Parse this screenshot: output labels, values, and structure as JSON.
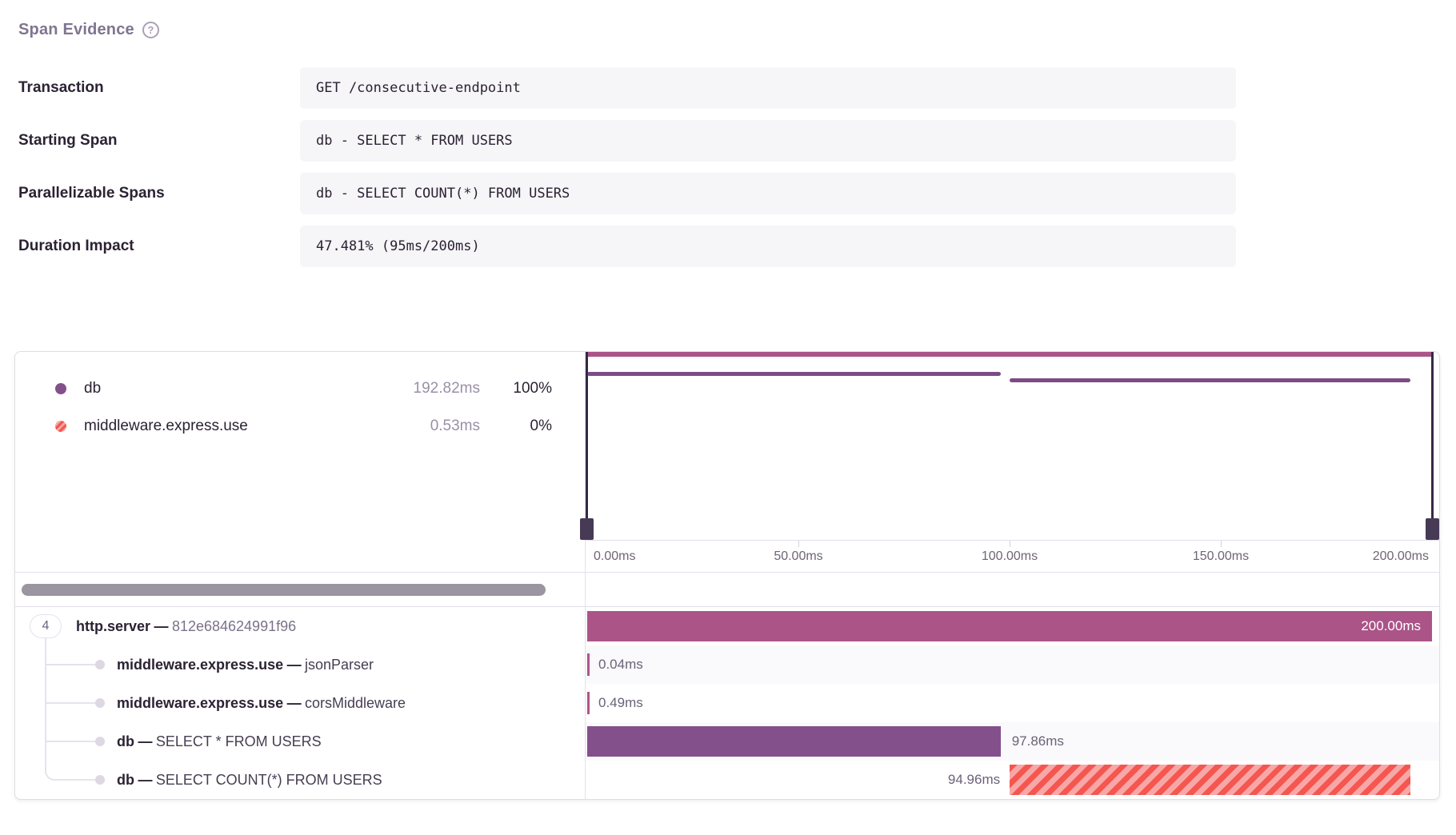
{
  "page": {
    "title": "Span Evidence",
    "help_glyph": "?"
  },
  "evidence": {
    "rows": [
      {
        "label": "Transaction",
        "value": "GET /consecutive-endpoint"
      },
      {
        "label": "Starting Span",
        "value": "db - SELECT * FROM USERS"
      },
      {
        "label": "Parallelizable Spans",
        "value": "db - SELECT COUNT(*) FROM USERS"
      },
      {
        "label": "Duration Impact",
        "value": "47.481% (95ms/200ms)"
      }
    ]
  },
  "chart_data": {
    "type": "bar",
    "variant": "span-waterfall",
    "x_unit": "ms",
    "x_range": [
      0,
      200
    ],
    "axis_ticks": [
      "0.00ms",
      "50.00ms",
      "100.00ms",
      "150.00ms",
      "200.00ms"
    ],
    "grid": false,
    "legend_position": "left",
    "legend": [
      {
        "name": "db",
        "duration": "192.82ms",
        "percent": "100%",
        "swatch": "solid-purple"
      },
      {
        "name": "middleware.express.use",
        "duration": "0.53ms",
        "percent": "0%",
        "swatch": "striped-red"
      }
    ],
    "separator": "—",
    "spans": [
      {
        "op": "http.server",
        "description": "812e684624991f96",
        "child_count": "4",
        "start_ms": 0,
        "duration_ms": 200,
        "duration_label": "200.00ms",
        "style": "magenta",
        "label_placement": "inside",
        "in_minimap": "bar"
      },
      {
        "op": "middleware.express.use",
        "description": "jsonParser",
        "start_ms": 0,
        "duration_ms": 0.04,
        "duration_label": "0.04ms",
        "style": "thin-magenta",
        "label_placement": "right"
      },
      {
        "op": "middleware.express.use",
        "description": "corsMiddleware",
        "start_ms": 0,
        "duration_ms": 0.49,
        "duration_label": "0.49ms",
        "style": "thin-magenta",
        "label_placement": "right"
      },
      {
        "op": "db",
        "description": "SELECT * FROM USERS",
        "start_ms": 0,
        "duration_ms": 97.86,
        "duration_label": "97.86ms",
        "style": "purple",
        "label_placement": "right",
        "in_minimap": "line"
      },
      {
        "op": "db",
        "description": "SELECT COUNT(*) FROM USERS",
        "start_ms": 100.02,
        "duration_ms": 94.96,
        "duration_label": "94.96ms",
        "style": "striped-red",
        "label_placement": "left",
        "in_minimap": "line"
      }
    ]
  },
  "colors": {
    "http_server_bar": "#ab5488",
    "db_bar": "#84508b",
    "middleware_tick": "#b2548c",
    "minimap_line": "#7b4c86",
    "stripe_red": "#f5564f",
    "stripe_pink": "#f8a7a7",
    "value_box_bg": "#f6f5f8",
    "border": "#e4dfe9",
    "muted_text": "#6f6380",
    "scrollbar": "#9b95a2",
    "handle": "#342a47"
  }
}
